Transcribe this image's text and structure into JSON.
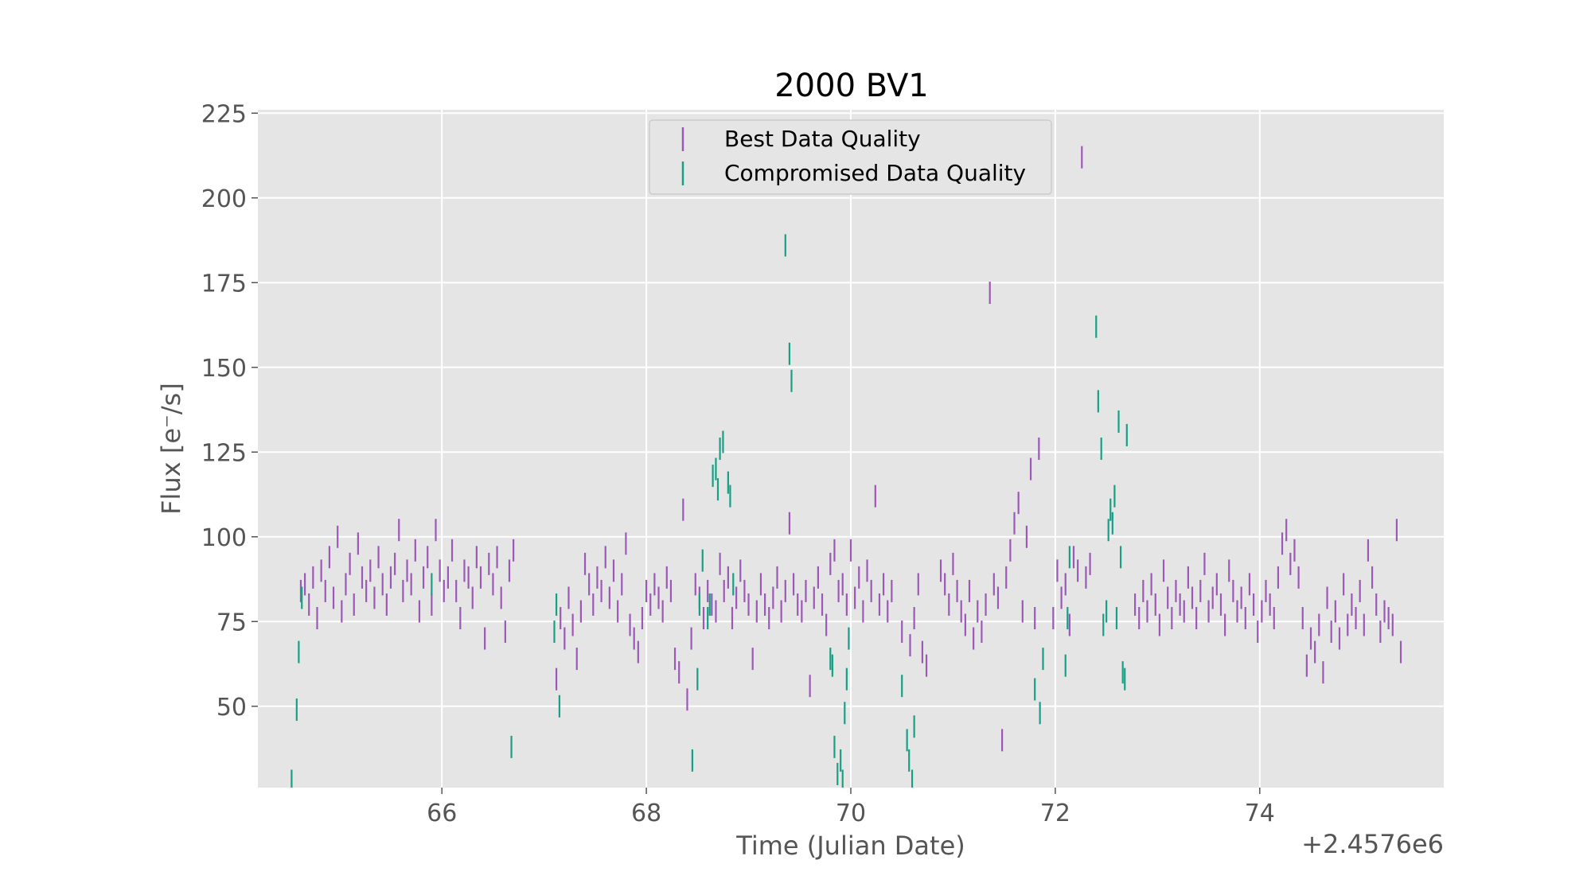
{
  "chart_data": {
    "type": "scatter",
    "title": "2000 BV1",
    "xlabel": "Time (Julian Date)",
    "ylabel": "Flux [e⁻/s]",
    "x_offset_label": "+2.4576e6",
    "xlim": [
      64.2,
      75.8
    ],
    "ylim": [
      26,
      226
    ],
    "xticks": [
      66,
      68,
      70,
      72,
      74
    ],
    "xtick_labels": [
      "66",
      "68",
      "70",
      "72",
      "74"
    ],
    "yticks": [
      50,
      75,
      100,
      125,
      150,
      175,
      200,
      225
    ],
    "ytick_labels": [
      "50",
      "75",
      "100",
      "125",
      "150",
      "175",
      "200",
      "225"
    ],
    "grid": true,
    "legend_placement": "top-center",
    "colors": {
      "plot_background": "#e5e5e5",
      "grid": "#ffffff",
      "best": "#9b59b6",
      "compromised": "#16a085"
    },
    "series": [
      {
        "name": "Best Data Quality",
        "color": "#9b59b6",
        "points": [
          [
            64.62,
            84
          ],
          [
            64.66,
            86
          ],
          [
            64.7,
            80
          ],
          [
            64.74,
            88
          ],
          [
            64.78,
            76
          ],
          [
            64.82,
            90
          ],
          [
            64.86,
            84
          ],
          [
            64.9,
            94
          ],
          [
            64.94,
            82
          ],
          [
            64.98,
            100
          ],
          [
            65.02,
            78
          ],
          [
            65.06,
            86
          ],
          [
            65.1,
            92
          ],
          [
            65.14,
            80
          ],
          [
            65.18,
            98
          ],
          [
            65.22,
            88
          ],
          [
            65.26,
            84
          ],
          [
            65.3,
            90
          ],
          [
            65.34,
            82
          ],
          [
            65.38,
            94
          ],
          [
            65.42,
            86
          ],
          [
            65.46,
            80
          ],
          [
            65.5,
            88
          ],
          [
            65.54,
            92
          ],
          [
            65.58,
            102
          ],
          [
            65.62,
            84
          ],
          [
            65.66,
            90
          ],
          [
            65.7,
            86
          ],
          [
            65.74,
            96
          ],
          [
            65.78,
            78
          ],
          [
            65.82,
            88
          ],
          [
            65.86,
            94
          ],
          [
            65.9,
            80
          ],
          [
            65.94,
            102
          ],
          [
            65.98,
            90
          ],
          [
            66.02,
            84
          ],
          [
            66.06,
            88
          ],
          [
            66.1,
            96
          ],
          [
            66.14,
            84
          ],
          [
            66.18,
            76
          ],
          [
            66.22,
            90
          ],
          [
            66.26,
            88
          ],
          [
            66.3,
            82
          ],
          [
            66.34,
            94
          ],
          [
            66.38,
            88
          ],
          [
            66.42,
            70
          ],
          [
            66.46,
            92
          ],
          [
            66.5,
            86
          ],
          [
            66.54,
            94
          ],
          [
            66.58,
            82
          ],
          [
            66.62,
            72
          ],
          [
            66.66,
            90
          ],
          [
            66.7,
            96
          ],
          [
            67.12,
            58
          ],
          [
            67.16,
            76
          ],
          [
            67.2,
            70
          ],
          [
            67.24,
            82
          ],
          [
            67.28,
            74
          ],
          [
            67.32,
            64
          ],
          [
            67.36,
            78
          ],
          [
            67.4,
            92
          ],
          [
            67.44,
            86
          ],
          [
            67.48,
            80
          ],
          [
            67.52,
            88
          ],
          [
            67.56,
            84
          ],
          [
            67.6,
            94
          ],
          [
            67.64,
            82
          ],
          [
            67.68,
            90
          ],
          [
            67.72,
            78
          ],
          [
            67.76,
            86
          ],
          [
            67.8,
            98
          ],
          [
            67.84,
            74
          ],
          [
            67.88,
            70
          ],
          [
            67.92,
            66
          ],
          [
            67.96,
            76
          ],
          [
            68.0,
            84
          ],
          [
            68.04,
            80
          ],
          [
            68.08,
            86
          ],
          [
            68.12,
            82
          ],
          [
            68.16,
            78
          ],
          [
            68.2,
            88
          ],
          [
            68.24,
            84
          ],
          [
            68.28,
            64
          ],
          [
            68.32,
            60
          ],
          [
            68.36,
            108
          ],
          [
            68.4,
            52
          ],
          [
            68.44,
            70
          ],
          [
            68.48,
            86
          ],
          [
            68.52,
            82
          ],
          [
            68.56,
            76
          ],
          [
            68.6,
            84
          ],
          [
            68.64,
            80
          ],
          [
            68.68,
            78
          ],
          [
            68.72,
            92
          ],
          [
            68.76,
            84
          ],
          [
            68.8,
            88
          ],
          [
            68.84,
            76
          ],
          [
            68.88,
            82
          ],
          [
            68.92,
            90
          ],
          [
            68.96,
            84
          ],
          [
            69.0,
            80
          ],
          [
            69.04,
            64
          ],
          [
            69.08,
            78
          ],
          [
            69.12,
            86
          ],
          [
            69.16,
            80
          ],
          [
            69.2,
            76
          ],
          [
            69.24,
            82
          ],
          [
            69.28,
            88
          ],
          [
            69.32,
            78
          ],
          [
            69.36,
            84
          ],
          [
            69.4,
            104
          ],
          [
            69.44,
            86
          ],
          [
            69.48,
            80
          ],
          [
            69.52,
            78
          ],
          [
            69.56,
            84
          ],
          [
            69.6,
            56
          ],
          [
            69.64,
            82
          ],
          [
            69.68,
            88
          ],
          [
            69.72,
            80
          ],
          [
            69.76,
            74
          ],
          [
            69.8,
            92
          ],
          [
            69.84,
            96
          ],
          [
            69.88,
            84
          ],
          [
            69.92,
            86
          ],
          [
            69.96,
            80
          ],
          [
            70.0,
            96
          ],
          [
            70.04,
            82
          ],
          [
            70.08,
            88
          ],
          [
            70.12,
            78
          ],
          [
            70.16,
            90
          ],
          [
            70.2,
            84
          ],
          [
            70.24,
            112
          ],
          [
            70.28,
            80
          ],
          [
            70.32,
            86
          ],
          [
            70.36,
            78
          ],
          [
            70.4,
            84
          ],
          [
            70.5,
            72
          ],
          [
            70.58,
            68
          ],
          [
            70.62,
            76
          ],
          [
            70.66,
            86
          ],
          [
            70.7,
            66
          ],
          [
            70.74,
            62
          ],
          [
            70.88,
            90
          ],
          [
            70.92,
            86
          ],
          [
            70.96,
            80
          ],
          [
            71.0,
            92
          ],
          [
            71.04,
            84
          ],
          [
            71.08,
            78
          ],
          [
            71.12,
            74
          ],
          [
            71.16,
            84
          ],
          [
            71.2,
            70
          ],
          [
            71.24,
            78
          ],
          [
            71.28,
            72
          ],
          [
            71.32,
            80
          ],
          [
            71.36,
            172
          ],
          [
            71.4,
            86
          ],
          [
            71.44,
            82
          ],
          [
            71.48,
            40
          ],
          [
            71.52,
            88
          ],
          [
            71.56,
            96
          ],
          [
            71.6,
            104
          ],
          [
            71.64,
            110
          ],
          [
            71.68,
            78
          ],
          [
            71.72,
            100
          ],
          [
            71.76,
            120
          ],
          [
            71.8,
            76
          ],
          [
            71.84,
            126
          ],
          [
            71.98,
            76
          ],
          [
            72.02,
            90
          ],
          [
            72.06,
            82
          ],
          [
            72.1,
            86
          ],
          [
            72.14,
            74
          ],
          [
            72.18,
            94
          ],
          [
            72.22,
            90
          ],
          [
            72.26,
            212
          ],
          [
            72.3,
            88
          ],
          [
            72.34,
            92
          ],
          [
            72.78,
            80
          ],
          [
            72.82,
            76
          ],
          [
            72.86,
            84
          ],
          [
            72.9,
            78
          ],
          [
            72.94,
            86
          ],
          [
            72.98,
            80
          ],
          [
            73.02,
            74
          ],
          [
            73.06,
            90
          ],
          [
            73.1,
            82
          ],
          [
            73.14,
            76
          ],
          [
            73.18,
            84
          ],
          [
            73.22,
            80
          ],
          [
            73.26,
            78
          ],
          [
            73.3,
            88
          ],
          [
            73.34,
            82
          ],
          [
            73.38,
            76
          ],
          [
            73.42,
            84
          ],
          [
            73.46,
            92
          ],
          [
            73.5,
            78
          ],
          [
            73.54,
            82
          ],
          [
            73.58,
            86
          ],
          [
            73.62,
            80
          ],
          [
            73.66,
            74
          ],
          [
            73.7,
            90
          ],
          [
            73.74,
            84
          ],
          [
            73.78,
            78
          ],
          [
            73.82,
            82
          ],
          [
            73.86,
            76
          ],
          [
            73.9,
            86
          ],
          [
            73.94,
            80
          ],
          [
            73.98,
            72
          ],
          [
            74.02,
            78
          ],
          [
            74.06,
            84
          ],
          [
            74.1,
            80
          ],
          [
            74.14,
            76
          ],
          [
            74.18,
            88
          ],
          [
            74.22,
            98
          ],
          [
            74.26,
            102
          ],
          [
            74.3,
            92
          ],
          [
            74.34,
            96
          ],
          [
            74.38,
            88
          ],
          [
            74.42,
            76
          ],
          [
            74.46,
            62
          ],
          [
            74.5,
            70
          ],
          [
            74.54,
            66
          ],
          [
            74.58,
            74
          ],
          [
            74.62,
            60
          ],
          [
            74.66,
            82
          ],
          [
            74.7,
            72
          ],
          [
            74.74,
            78
          ],
          [
            74.78,
            70
          ],
          [
            74.82,
            86
          ],
          [
            74.86,
            74
          ],
          [
            74.9,
            80
          ],
          [
            74.94,
            76
          ],
          [
            74.98,
            84
          ],
          [
            75.02,
            74
          ],
          [
            75.06,
            96
          ],
          [
            75.1,
            88
          ],
          [
            75.14,
            80
          ],
          [
            75.18,
            72
          ],
          [
            75.22,
            78
          ],
          [
            75.26,
            76
          ],
          [
            75.3,
            74
          ],
          [
            75.34,
            102
          ],
          [
            75.38,
            66
          ]
        ]
      },
      {
        "name": "Compromised Data Quality",
        "color": "#16a085",
        "points": [
          [
            64.53,
            28
          ],
          [
            64.58,
            49
          ],
          [
            64.6,
            66
          ],
          [
            64.63,
            82
          ],
          [
            65.9,
            86
          ],
          [
            66.68,
            38
          ],
          [
            67.1,
            72
          ],
          [
            67.12,
            80
          ],
          [
            67.15,
            50
          ],
          [
            68.45,
            34
          ],
          [
            68.5,
            58
          ],
          [
            68.52,
            80
          ],
          [
            68.55,
            93
          ],
          [
            68.6,
            76
          ],
          [
            68.62,
            80
          ],
          [
            68.65,
            118
          ],
          [
            68.68,
            120
          ],
          [
            68.7,
            114
          ],
          [
            68.72,
            126
          ],
          [
            68.75,
            128
          ],
          [
            68.8,
            116
          ],
          [
            68.82,
            112
          ],
          [
            68.85,
            86
          ],
          [
            69.36,
            186
          ],
          [
            69.4,
            154
          ],
          [
            69.42,
            146
          ],
          [
            69.8,
            64
          ],
          [
            69.82,
            62
          ],
          [
            69.84,
            38
          ],
          [
            69.87,
            30
          ],
          [
            69.9,
            34
          ],
          [
            69.92,
            28
          ],
          [
            69.94,
            48
          ],
          [
            69.96,
            58
          ],
          [
            69.98,
            70
          ],
          [
            70.5,
            56
          ],
          [
            70.55,
            40
          ],
          [
            70.57,
            34
          ],
          [
            70.6,
            28
          ],
          [
            70.62,
            44
          ],
          [
            71.8,
            55
          ],
          [
            71.85,
            48
          ],
          [
            71.88,
            64
          ],
          [
            72.1,
            62
          ],
          [
            72.12,
            76
          ],
          [
            72.14,
            94
          ],
          [
            72.4,
            162
          ],
          [
            72.42,
            140
          ],
          [
            72.45,
            126
          ],
          [
            72.47,
            74
          ],
          [
            72.5,
            78
          ],
          [
            72.52,
            102
          ],
          [
            72.54,
            108
          ],
          [
            72.56,
            104
          ],
          [
            72.58,
            112
          ],
          [
            72.6,
            76
          ],
          [
            72.62,
            134
          ],
          [
            72.64,
            94
          ],
          [
            72.66,
            60
          ],
          [
            72.68,
            58
          ],
          [
            72.7,
            130
          ]
        ]
      }
    ]
  }
}
